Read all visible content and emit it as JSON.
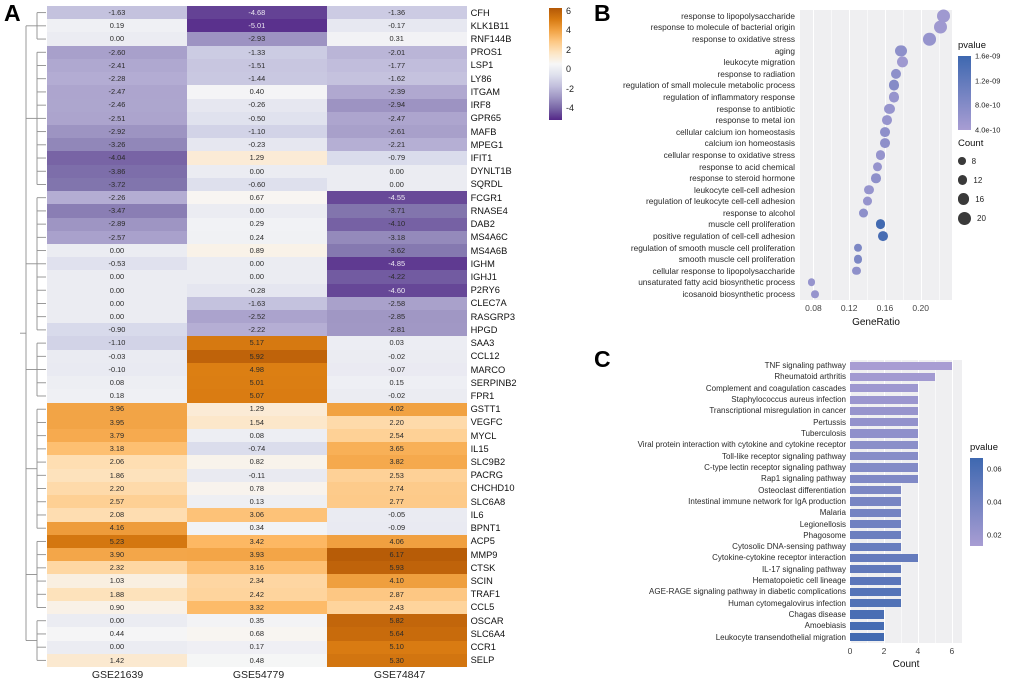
{
  "figure": {
    "panel_a_label": "A",
    "panel_b_label": "B",
    "panel_c_label": "C"
  },
  "chart_data": [
    {
      "type": "heatmap",
      "panel": "A",
      "columns": [
        "GSE21639",
        "GSE54779",
        "GSE74847"
      ],
      "colorbar_ticks": [
        6,
        4,
        2,
        0,
        -2,
        -4
      ],
      "value_range": [
        -5.2,
        6.3
      ],
      "palette": "PuOr (purple low, orange high)",
      "clusters": [
        [
          0,
          2
        ],
        [
          3,
          13
        ],
        [
          14,
          24
        ],
        [
          25,
          29
        ],
        [
          30,
          39
        ],
        [
          40,
          45
        ],
        [
          46,
          49
        ]
      ],
      "rows": [
        {
          "gene": "CFH",
          "values": [
            -1.63,
            -4.68,
            -1.36
          ]
        },
        {
          "gene": "KLK1B11",
          "values": [
            0.19,
            -5.01,
            -0.17
          ]
        },
        {
          "gene": "RNF144B",
          "values": [
            0,
            -2.93,
            0.31
          ]
        },
        {
          "gene": "PROS1",
          "values": [
            -2.6,
            -1.33,
            -2.01
          ]
        },
        {
          "gene": "LSP1",
          "values": [
            -2.41,
            -1.51,
            -1.77
          ]
        },
        {
          "gene": "LY86",
          "values": [
            -2.28,
            -1.44,
            -1.62
          ]
        },
        {
          "gene": "ITGAM",
          "values": [
            -2.47,
            0.4,
            -2.39
          ]
        },
        {
          "gene": "IRF8",
          "values": [
            -2.46,
            -0.26,
            -2.94
          ]
        },
        {
          "gene": "GPR65",
          "values": [
            -2.51,
            -0.5,
            -2.47
          ]
        },
        {
          "gene": "MAFB",
          "values": [
            -2.92,
            -1.1,
            -2.61
          ]
        },
        {
          "gene": "MPEG1",
          "values": [
            -3.26,
            -0.23,
            -2.21
          ]
        },
        {
          "gene": "IFIT1",
          "values": [
            -4.04,
            1.29,
            -0.79
          ]
        },
        {
          "gene": "DYNLT1B",
          "values": [
            -3.86,
            0,
            0
          ]
        },
        {
          "gene": "SQRDL",
          "values": [
            -3.72,
            -0.6,
            0
          ]
        },
        {
          "gene": "FCGR1",
          "values": [
            -2.26,
            0.67,
            -4.55
          ]
        },
        {
          "gene": "RNASE4",
          "values": [
            -3.47,
            0,
            -3.71
          ]
        },
        {
          "gene": "DAB2",
          "values": [
            -2.89,
            0.29,
            -4.1
          ]
        },
        {
          "gene": "MS4A6C",
          "values": [
            -2.57,
            0.24,
            -3.18
          ]
        },
        {
          "gene": "MS4A6B",
          "values": [
            0,
            0.89,
            -3.62
          ]
        },
        {
          "gene": "IGHM",
          "values": [
            -0.53,
            0,
            -4.85
          ]
        },
        {
          "gene": "IGHJ1",
          "values": [
            0,
            0,
            -4.22
          ]
        },
        {
          "gene": "P2RY6",
          "values": [
            0,
            -0.28,
            -4.6
          ]
        },
        {
          "gene": "CLEC7A",
          "values": [
            0,
            -1.63,
            -2.58
          ]
        },
        {
          "gene": "RASGRP3",
          "values": [
            0,
            -2.52,
            -2.85
          ]
        },
        {
          "gene": "HPGD",
          "values": [
            -0.9,
            -2.22,
            -2.81
          ]
        },
        {
          "gene": "SAA3",
          "values": [
            -1.1,
            5.17,
            0.03
          ]
        },
        {
          "gene": "CCL12",
          "values": [
            -0.03,
            5.92,
            -0.02
          ]
        },
        {
          "gene": "MARCO",
          "values": [
            -0.1,
            4.98,
            -0.07
          ]
        },
        {
          "gene": "SERPINB2",
          "values": [
            0.08,
            5.01,
            0.15
          ]
        },
        {
          "gene": "FPR1",
          "values": [
            0.18,
            5.07,
            -0.02
          ]
        },
        {
          "gene": "GSTT1",
          "values": [
            3.96,
            1.29,
            4.02
          ]
        },
        {
          "gene": "VEGFC",
          "values": [
            3.95,
            1.54,
            2.2
          ]
        },
        {
          "gene": "MYCL",
          "values": [
            3.79,
            0.08,
            2.54
          ]
        },
        {
          "gene": "IL15",
          "values": [
            3.18,
            -0.74,
            3.65
          ]
        },
        {
          "gene": "SLC9B2",
          "values": [
            2.06,
            0.82,
            3.82
          ]
        },
        {
          "gene": "PACRG",
          "values": [
            1.86,
            -0.11,
            2.53
          ]
        },
        {
          "gene": "CHCHD10",
          "values": [
            2.2,
            0.78,
            2.74
          ]
        },
        {
          "gene": "SLC6A8",
          "values": [
            2.57,
            0.13,
            2.77
          ]
        },
        {
          "gene": "IL6",
          "values": [
            2.08,
            3.06,
            -0.05
          ]
        },
        {
          "gene": "BPNT1",
          "values": [
            4.16,
            0.34,
            -0.09
          ]
        },
        {
          "gene": "ACP5",
          "values": [
            5.23,
            3.42,
            4.06
          ]
        },
        {
          "gene": "MMP9",
          "values": [
            3.9,
            3.93,
            6.17
          ]
        },
        {
          "gene": "CTSK",
          "values": [
            2.32,
            3.16,
            5.93
          ]
        },
        {
          "gene": "SCIN",
          "values": [
            1.03,
            2.34,
            4.1
          ]
        },
        {
          "gene": "TRAF1",
          "values": [
            1.88,
            2.42,
            2.87
          ]
        },
        {
          "gene": "CCL5",
          "values": [
            0.9,
            3.32,
            2.43
          ]
        },
        {
          "gene": "OSCAR",
          "values": [
            0,
            0.35,
            5.82
          ]
        },
        {
          "gene": "SLC6A4",
          "values": [
            0.44,
            0.68,
            5.64
          ]
        },
        {
          "gene": "CCR1",
          "values": [
            0,
            0.17,
            5.1
          ]
        },
        {
          "gene": "SELP",
          "values": [
            1.42,
            0.48,
            5.3
          ]
        }
      ]
    },
    {
      "type": "scatter",
      "panel": "B",
      "xlabel": "GeneRatio",
      "x_ticks": [
        "0.08",
        "0.12",
        "0.16",
        "0.20"
      ],
      "x_minor_ticks": [
        0.1,
        0.14,
        0.18,
        0.22
      ],
      "xlim": [
        0.065,
        0.235
      ],
      "color_low": "#A89DD3",
      "color_high": "#3E68B0",
      "legend": {
        "pvalue_label": "pvalue",
        "pvalue_ticks": [
          "1.6e-09",
          "1.2e-09",
          "8.0e-10",
          "4.0e-10"
        ],
        "pvalue_range": [
          4e-10,
          1.6e-09
        ],
        "count_label": "Count",
        "count_ticks": [
          8,
          12,
          16,
          20
        ]
      },
      "points": [
        {
          "term": "response to lipopolysaccharide",
          "gene_ratio": 0.225,
          "count": 20,
          "pvalue": 5e-10
        },
        {
          "term": "response to molecule of bacterial origin",
          "gene_ratio": 0.222,
          "count": 20,
          "pvalue": 5e-10
        },
        {
          "term": "response to oxidative stress",
          "gene_ratio": 0.21,
          "count": 19,
          "pvalue": 6e-10
        },
        {
          "term": "aging",
          "gene_ratio": 0.178,
          "count": 16,
          "pvalue": 7e-10
        },
        {
          "term": "leukocyte migration",
          "gene_ratio": 0.18,
          "count": 16,
          "pvalue": 5e-10
        },
        {
          "term": "response to radiation",
          "gene_ratio": 0.172,
          "count": 14,
          "pvalue": 7e-10
        },
        {
          "term": "regulation of small molecule metabolic process",
          "gene_ratio": 0.17,
          "count": 15,
          "pvalue": 8e-10
        },
        {
          "term": "regulation of inflammatory response",
          "gene_ratio": 0.17,
          "count": 15,
          "pvalue": 6e-10
        },
        {
          "term": "response to antibiotic",
          "gene_ratio": 0.165,
          "count": 14,
          "pvalue": 6e-10
        },
        {
          "term": "response to metal ion",
          "gene_ratio": 0.162,
          "count": 13,
          "pvalue": 6e-10
        },
        {
          "term": "cellular calcium ion homeostasis",
          "gene_ratio": 0.16,
          "count": 13,
          "pvalue": 7e-10
        },
        {
          "term": "calcium ion homeostasis",
          "gene_ratio": 0.16,
          "count": 13,
          "pvalue": 7e-10
        },
        {
          "term": "cellular response to oxidative stress",
          "gene_ratio": 0.155,
          "count": 13,
          "pvalue": 6e-10
        },
        {
          "term": "response to acid chemical",
          "gene_ratio": 0.152,
          "count": 12,
          "pvalue": 6e-10
        },
        {
          "term": "response to steroid hormone",
          "gene_ratio": 0.15,
          "count": 12,
          "pvalue": 7e-10
        },
        {
          "term": "leukocyte cell-cell adhesion",
          "gene_ratio": 0.142,
          "count": 12,
          "pvalue": 6e-10
        },
        {
          "term": "regulation of leukocyte cell-cell adhesion",
          "gene_ratio": 0.14,
          "count": 11,
          "pvalue": 6e-10
        },
        {
          "term": "response to alcohol",
          "gene_ratio": 0.136,
          "count": 11,
          "pvalue": 7e-10
        },
        {
          "term": "muscle cell proliferation",
          "gene_ratio": 0.155,
          "count": 13,
          "pvalue": 1.55e-09
        },
        {
          "term": "positive regulation of cell-cell adhesion",
          "gene_ratio": 0.158,
          "count": 13,
          "pvalue": 1.5e-09
        },
        {
          "term": "regulation of smooth muscle cell proliferation",
          "gene_ratio": 0.13,
          "count": 10,
          "pvalue": 9e-10
        },
        {
          "term": "smooth muscle cell proliferation",
          "gene_ratio": 0.13,
          "count": 10,
          "pvalue": 9e-10
        },
        {
          "term": "cellular response to lipopolysaccharide",
          "gene_ratio": 0.128,
          "count": 10,
          "pvalue": 7e-10
        },
        {
          "term": "unsaturated fatty acid biosynthetic process",
          "gene_ratio": 0.078,
          "count": 8,
          "pvalue": 6e-10
        },
        {
          "term": "icosanoid biosynthetic process",
          "gene_ratio": 0.082,
          "count": 8,
          "pvalue": 6e-10
        }
      ]
    },
    {
      "type": "bar",
      "panel": "C",
      "xlabel": "Count",
      "x_ticks": [
        0,
        2,
        4,
        6
      ],
      "x_minor_ticks": [
        1,
        3,
        5
      ],
      "xlim": [
        0,
        6.6
      ],
      "color_low": "#A89DD3",
      "color_high": "#3E68B0",
      "legend": {
        "pvalue_label": "pvalue",
        "pvalue_ticks": [
          "0.06",
          "0.04",
          "0.02"
        ],
        "pvalue_range": [
          0.005,
          0.06
        ]
      },
      "bars": [
        {
          "pathway": "TNF signaling pathway",
          "count": 6,
          "pvalue": 0.005
        },
        {
          "pathway": "Rheumatoid arthritis",
          "count": 5,
          "pvalue": 0.008
        },
        {
          "pathway": "Complement and coagulation cascades",
          "count": 4,
          "pvalue": 0.01
        },
        {
          "pathway": "Staphylococcus aureus infection",
          "count": 4,
          "pvalue": 0.012
        },
        {
          "pathway": "Transcriptional misregulation in cancer",
          "count": 4,
          "pvalue": 0.014
        },
        {
          "pathway": "Pertussis",
          "count": 4,
          "pvalue": 0.016
        },
        {
          "pathway": "Tuberculosis",
          "count": 4,
          "pvalue": 0.018
        },
        {
          "pathway": "Viral protein interaction with cytokine and cytokine receptor",
          "count": 4,
          "pvalue": 0.02
        },
        {
          "pathway": "Toll-like receptor signaling pathway",
          "count": 4,
          "pvalue": 0.022
        },
        {
          "pathway": "C-type lectin receptor signaling pathway",
          "count": 4,
          "pvalue": 0.024
        },
        {
          "pathway": "Rap1 signaling pathway",
          "count": 4,
          "pvalue": 0.026
        },
        {
          "pathway": "Osteoclast differentiation",
          "count": 3,
          "pvalue": 0.028
        },
        {
          "pathway": "Intestinal immune network for IgA production",
          "count": 3,
          "pvalue": 0.03
        },
        {
          "pathway": "Malaria",
          "count": 3,
          "pvalue": 0.032
        },
        {
          "pathway": "Legionellosis",
          "count": 3,
          "pvalue": 0.034
        },
        {
          "pathway": "Phagosome",
          "count": 3,
          "pvalue": 0.036
        },
        {
          "pathway": "Cytosolic DNA-sensing pathway",
          "count": 3,
          "pvalue": 0.038
        },
        {
          "pathway": "Cytokine-cytokine receptor interaction",
          "count": 4,
          "pvalue": 0.04
        },
        {
          "pathway": "IL-17 signaling pathway",
          "count": 3,
          "pvalue": 0.042
        },
        {
          "pathway": "Hematopoietic cell lineage",
          "count": 3,
          "pvalue": 0.045
        },
        {
          "pathway": "AGE-RAGE signaling pathway in diabetic complications",
          "count": 3,
          "pvalue": 0.048
        },
        {
          "pathway": "Human cytomegalovirus infection",
          "count": 3,
          "pvalue": 0.05
        },
        {
          "pathway": "Chagas disease",
          "count": 2,
          "pvalue": 0.054
        },
        {
          "pathway": "Amoebiasis",
          "count": 2,
          "pvalue": 0.056
        },
        {
          "pathway": "Leukocyte transendothelial migration",
          "count": 2,
          "pvalue": 0.058
        }
      ]
    }
  ]
}
